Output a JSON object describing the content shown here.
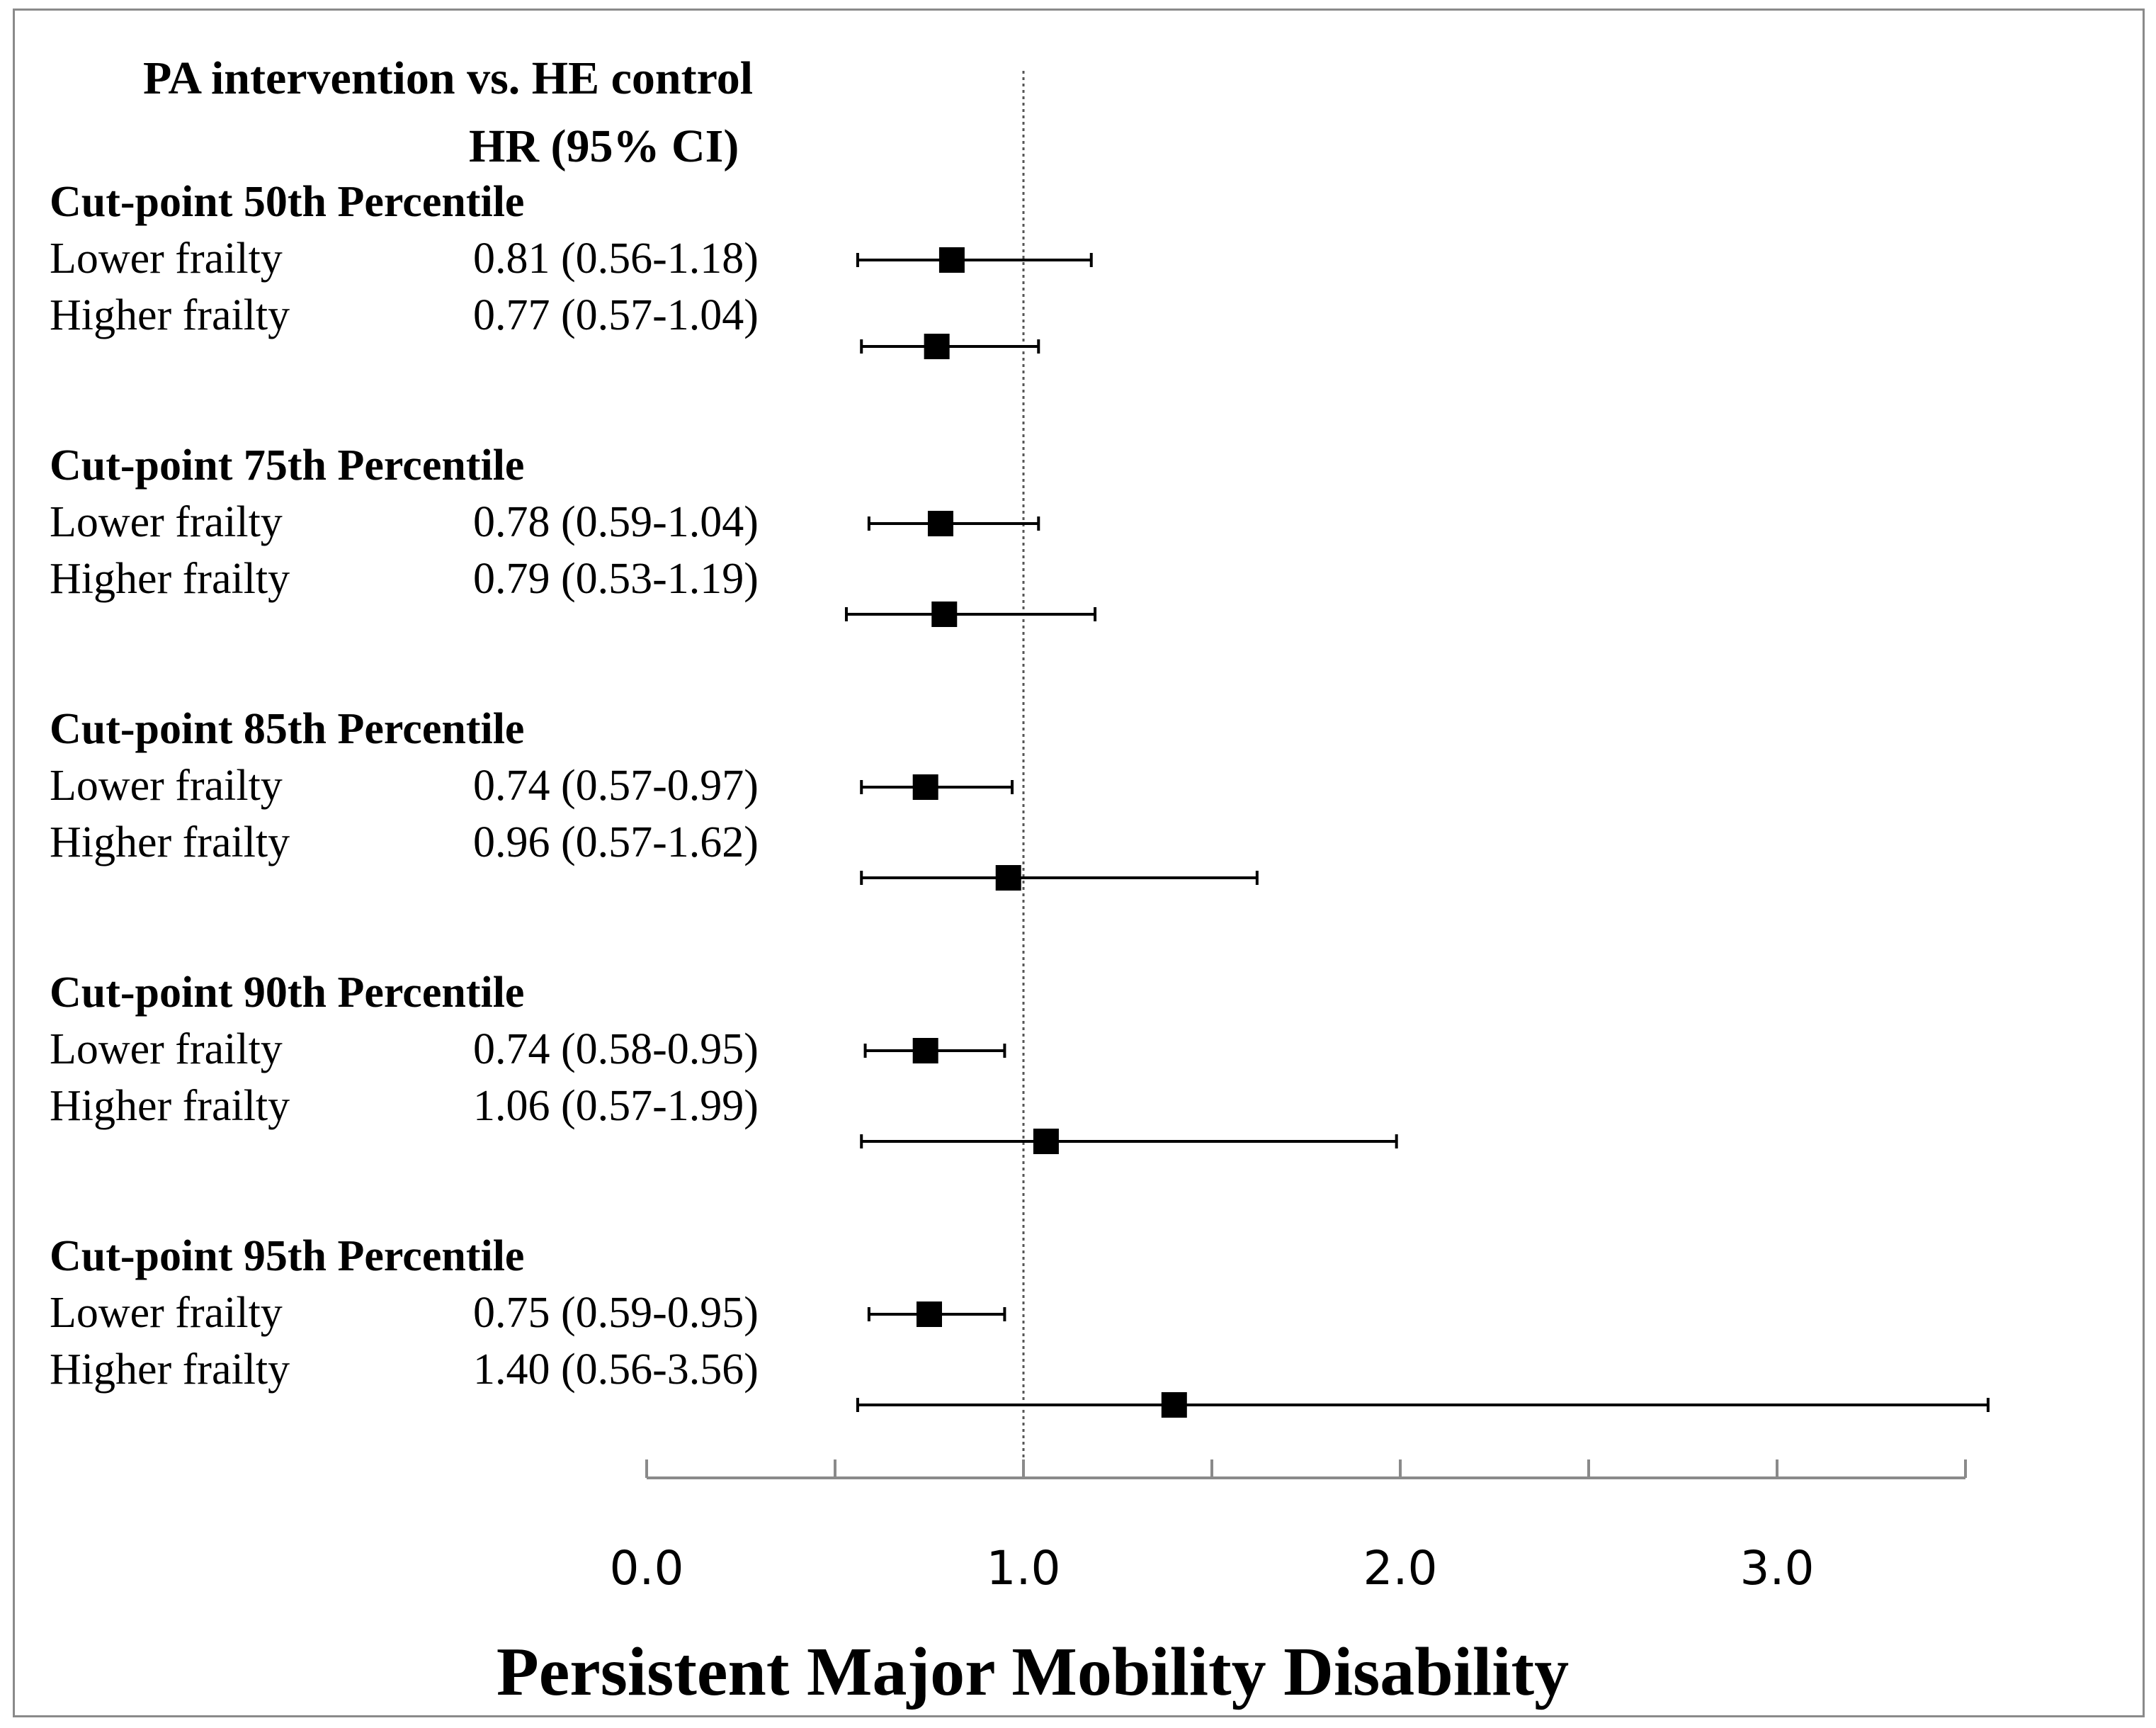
{
  "chart_data": {
    "type": "forest",
    "header": {
      "title": "PA intervention vs. HE control",
      "estimate_label": "HR (95% CI)"
    },
    "xlabel": "Persistent Major Mobility Disability",
    "xlim": [
      0.0,
      3.5
    ],
    "xticks": [
      0.0,
      0.5,
      1.0,
      1.5,
      2.0,
      2.5,
      3.0,
      3.5
    ],
    "xtick_labels": [
      "0.0",
      "1.0",
      "2.0",
      "3.0"
    ],
    "xtick_label_values": [
      0.0,
      1.0,
      2.0,
      3.0
    ],
    "reference_line": 1.0,
    "groups": [
      {
        "label": "Cut-point 50th Percentile",
        "rows": [
          {
            "label": "Lower frailty",
            "text": "0.81 (0.56-1.18)",
            "hr": 0.81,
            "lo": 0.56,
            "hi": 1.18
          },
          {
            "label": "Higher frailty",
            "text": "0.77 (0.57-1.04)",
            "hr": 0.77,
            "lo": 0.57,
            "hi": 1.04
          }
        ]
      },
      {
        "label": "Cut-point 75th Percentile",
        "rows": [
          {
            "label": "Lower frailty",
            "text": "0.78 (0.59-1.04)",
            "hr": 0.78,
            "lo": 0.59,
            "hi": 1.04
          },
          {
            "label": "Higher frailty",
            "text": "0.79 (0.53-1.19)",
            "hr": 0.79,
            "lo": 0.53,
            "hi": 1.19
          }
        ]
      },
      {
        "label": "Cut-point 85th Percentile",
        "rows": [
          {
            "label": "Lower frailty",
            "text": "0.74 (0.57-0.97)",
            "hr": 0.74,
            "lo": 0.57,
            "hi": 0.97
          },
          {
            "label": "Higher frailty",
            "text": "0.96 (0.57-1.62)",
            "hr": 0.96,
            "lo": 0.57,
            "hi": 1.62
          }
        ]
      },
      {
        "label": "Cut-point 90th Percentile",
        "rows": [
          {
            "label": "Lower frailty",
            "text": "0.74 (0.58-0.95)",
            "hr": 0.74,
            "lo": 0.58,
            "hi": 0.95
          },
          {
            "label": "Higher frailty",
            "text": "1.06 (0.57-1.99)",
            "hr": 1.06,
            "lo": 0.57,
            "hi": 1.99
          }
        ]
      },
      {
        "label": "Cut-point 95th Percentile",
        "rows": [
          {
            "label": "Lower frailty",
            "text": "0.75 (0.59-0.95)",
            "hr": 0.75,
            "lo": 0.59,
            "hi": 0.95
          },
          {
            "label": "Higher frailty",
            "text": "1.40 (0.56-3.56)",
            "hr": 1.4,
            "lo": 0.56,
            "hi": 3.56
          }
        ]
      }
    ],
    "marker": "square",
    "colors": {
      "marker": "#000000",
      "axis": "#8a8a8a",
      "reference": "#555555"
    }
  }
}
